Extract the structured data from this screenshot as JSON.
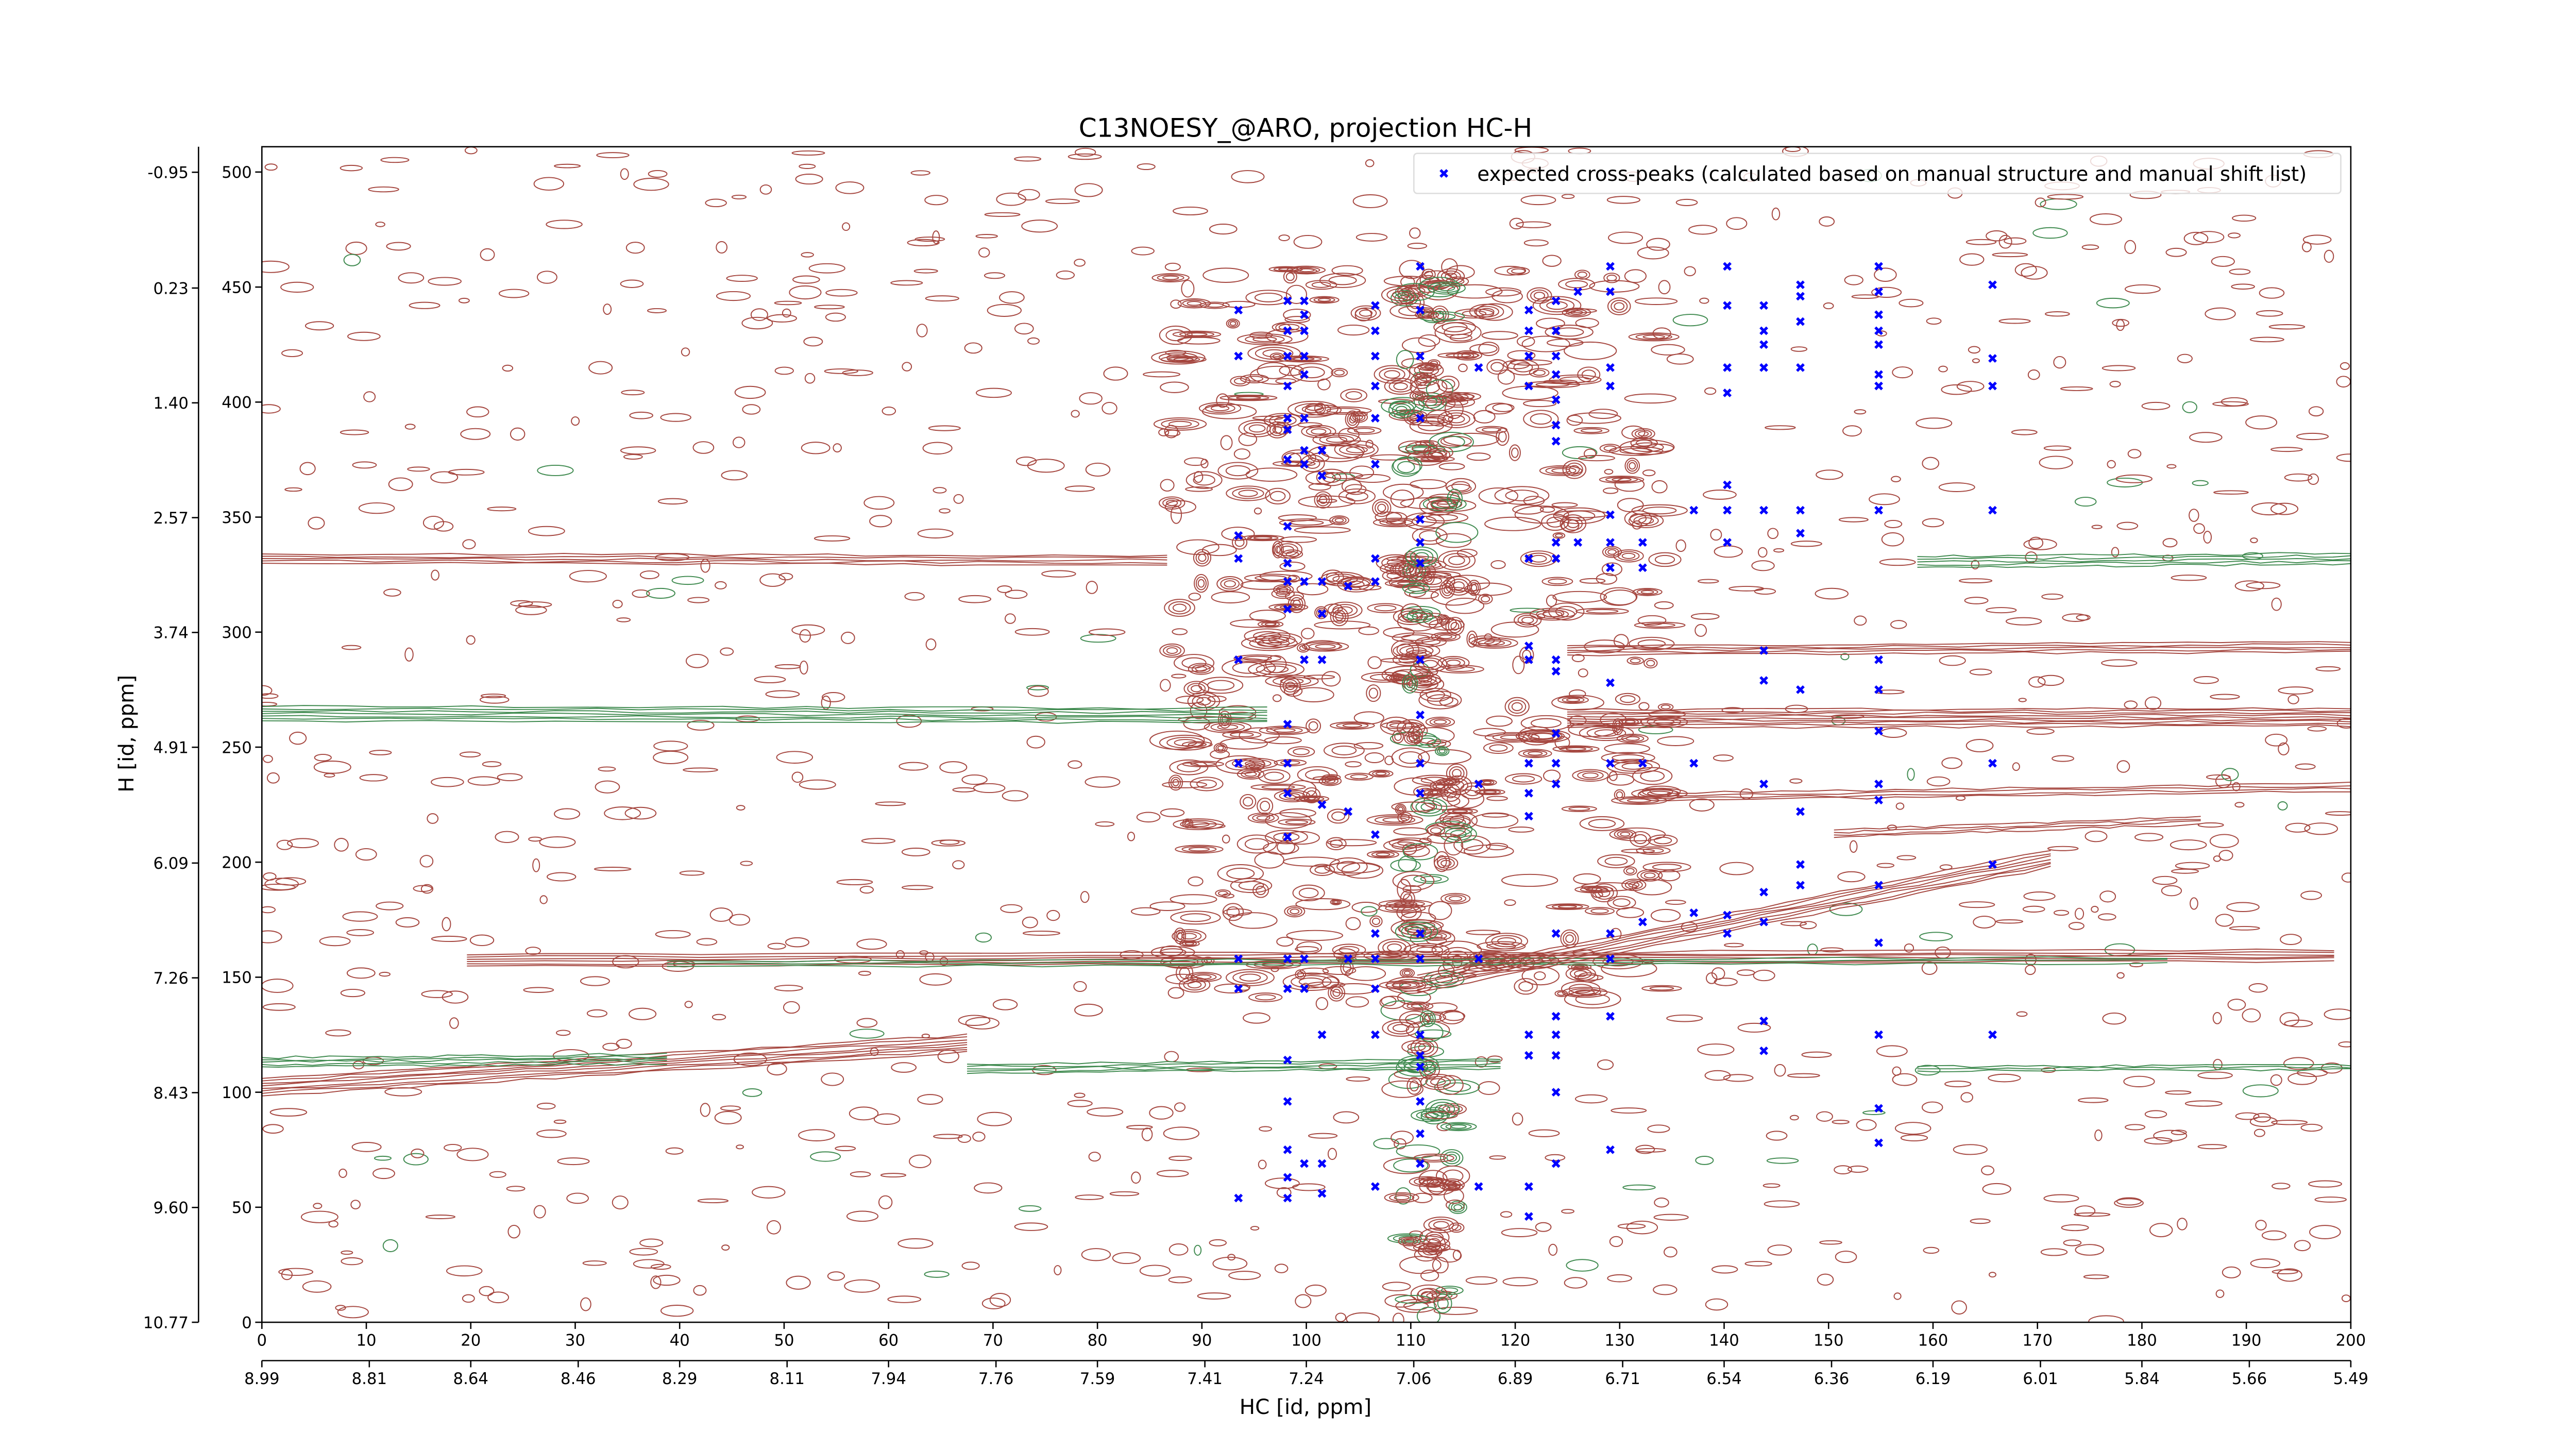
{
  "chart_data": {
    "type": "scatter",
    "title": "C13NOESY_@ARO, projection HC-H",
    "xlabel": "HC [id, ppm]",
    "ylabel": "H [id, ppm]",
    "xlim": [
      0,
      200
    ],
    "xticks": [
      0,
      10,
      20,
      30,
      40,
      50,
      60,
      70,
      80,
      90,
      100,
      110,
      120,
      130,
      140,
      150,
      160,
      170,
      180,
      190,
      200
    ],
    "x2lim": [
      8.99,
      5.49
    ],
    "x2ticks": [
      8.99,
      8.81,
      8.64,
      8.46,
      8.29,
      8.11,
      7.94,
      7.76,
      7.59,
      7.41,
      7.24,
      7.06,
      6.89,
      6.71,
      6.54,
      6.36,
      6.19,
      6.01,
      5.84,
      5.66,
      5.49
    ],
    "ylim": [
      0,
      511
    ],
    "yticks": [
      0,
      50,
      100,
      150,
      200,
      250,
      300,
      350,
      400,
      450,
      500
    ],
    "y2lim": [
      10.77,
      -1.21
    ],
    "y2ticks": [
      10.77,
      {
        "value": 9.6,
        "label": "9.60"
      },
      8.43,
      7.26,
      6.09,
      4.91,
      3.74,
      2.57,
      {
        "value": 1.4,
        "label": "1.40"
      },
      0.23,
      -0.95
    ],
    "legend": "upper right",
    "series": [
      {
        "name": "expected cross-peaks (calculated based on manual structure and manual shift list)",
        "color": "#0000ff",
        "x": [
          93.5,
          93.5,
          93.5,
          93.5,
          93.5,
          93.5,
          93.5,
          93.5,
          93.5,
          98.2,
          98.2,
          98.2,
          98.2,
          98.2,
          98.2,
          98.2,
          98.2,
          98.2,
          98.2,
          98.2,
          98.2,
          98.2,
          98.2,
          98.2,
          98.2,
          98.2,
          98.2,
          98.2,
          98.2,
          98.2,
          98.2,
          99.8,
          99.8,
          99.8,
          99.8,
          99.8,
          99.8,
          99.8,
          99.8,
          99.8,
          99.8,
          99.8,
          99.8,
          99.8,
          101.5,
          101.5,
          101.5,
          101.5,
          101.5,
          101.5,
          101.5,
          101.5,
          101.5,
          104,
          104,
          104,
          106.6,
          106.6,
          106.6,
          106.6,
          106.6,
          106.6,
          106.6,
          106.6,
          106.6,
          106.6,
          106.6,
          106.6,
          106.6,
          106.6,
          110.9,
          110.9,
          110.9,
          110.9,
          110.9,
          110.9,
          110.9,
          110.9,
          110.9,
          110.9,
          110.9,
          110.9,
          110.9,
          110.9,
          110.9,
          110.9,
          110.9,
          110.9,
          110.9,
          116.5,
          116.5,
          116.5,
          116.5,
          121.3,
          121.3,
          121.3,
          121.3,
          121.3,
          121.3,
          121.3,
          121.3,
          121.3,
          121.3,
          121.3,
          121.3,
          121.3,
          121.3,
          123.9,
          123.9,
          123.9,
          123.9,
          123.9,
          123.9,
          123.9,
          123.9,
          123.9,
          123.9,
          123.9,
          123.9,
          123.9,
          123.9,
          123.9,
          123.9,
          123.9,
          123.9,
          123.9,
          123.9,
          126,
          126,
          129.1,
          129.1,
          129.1,
          129.1,
          129.1,
          129.1,
          129.1,
          129.1,
          129.1,
          129.1,
          129.1,
          129.1,
          129.1,
          132.2,
          132.2,
          132.2,
          132.2,
          137.1,
          137.1,
          137.1,
          140.3,
          140.3,
          140.3,
          140.3,
          140.3,
          140.3,
          140.3,
          140.3,
          140.3,
          143.8,
          143.8,
          143.8,
          143.8,
          143.8,
          143.8,
          143.8,
          143.8,
          143.8,
          143.8,
          143.8,
          143.8,
          147.3,
          147.3,
          147.3,
          147.3,
          147.3,
          147.3,
          147.3,
          147.3,
          147.3,
          147.3,
          154.8,
          154.8,
          154.8,
          154.8,
          154.8,
          154.8,
          154.8,
          154.8,
          154.8,
          154.8,
          154.8,
          154.8,
          154.8,
          154.8,
          154.8,
          154.8,
          154.8,
          154.8,
          165.7,
          165.7,
          165.7,
          165.7,
          165.7,
          165.7,
          165.7
        ],
        "values": [
          440,
          420,
          342,
          332,
          288,
          243,
          158,
          145,
          54,
          444,
          431,
          420,
          407,
          393,
          388,
          375,
          346,
          330,
          322,
          310,
          260,
          243,
          230,
          211,
          158,
          145,
          114,
          96,
          75,
          63,
          54,
          444,
          438,
          431,
          420,
          412,
          393,
          379,
          373,
          322,
          288,
          158,
          145,
          69,
          379,
          368,
          322,
          308,
          288,
          225,
          125,
          69,
          56,
          320,
          222,
          158,
          442,
          431,
          420,
          407,
          393,
          373,
          332,
          322,
          212,
          169,
          158,
          145,
          125,
          59,
          459,
          440,
          420,
          393,
          349,
          339,
          330,
          288,
          264,
          243,
          230,
          169,
          158,
          125,
          116,
          111,
          96,
          82,
          69,
          415,
          234,
          158,
          59,
          440,
          431,
          420,
          407,
          332,
          294,
          288,
          243,
          230,
          220,
          125,
          116,
          59,
          46,
          444,
          431,
          420,
          412,
          401,
          390,
          383,
          339,
          332,
          288,
          283,
          256,
          243,
          234,
          169,
          133,
          125,
          116,
          100,
          69,
          448,
          339,
          459,
          448,
          415,
          407,
          351,
          339,
          328,
          278,
          243,
          169,
          158,
          133,
          75,
          339,
          328,
          243,
          174,
          353,
          243,
          178,
          459,
          442,
          415,
          404,
          364,
          353,
          339,
          177,
          169,
          442,
          431,
          425,
          415,
          353,
          292,
          279,
          234,
          187,
          174,
          131,
          118,
          451,
          446,
          435,
          415,
          353,
          343,
          275,
          222,
          199,
          190,
          459,
          448,
          438,
          431,
          425,
          412,
          407,
          353,
          288,
          275,
          257,
          234,
          227,
          190,
          165,
          125,
          93,
          78,
          451,
          419,
          407,
          353,
          243,
          199,
          125
        ]
      }
    ]
  }
}
